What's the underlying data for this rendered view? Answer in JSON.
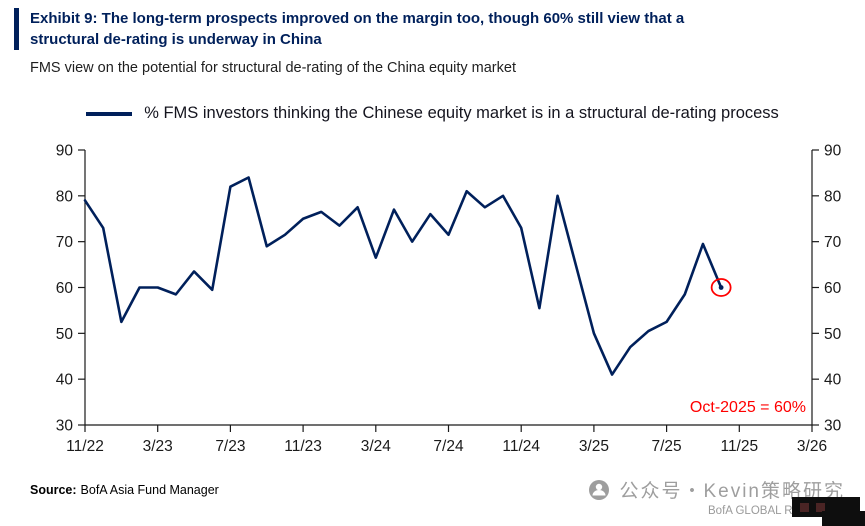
{
  "header": {
    "title_line1": "Exhibit 9: The long-term prospects improved on the margin too, though 60% still view that a",
    "title_line2": "structural de-rating is underway in China",
    "subtitle": "FMS view on the potential for structural de-rating of the China equity market"
  },
  "legend": {
    "label": "% FMS investors thinking the Chinese equity market is in a structural de-rating process"
  },
  "chart_data": {
    "type": "line",
    "title": "FMS view on the potential for structural de-rating of the China equity market",
    "series_name": "% FMS investors thinking the Chinese equity market is in a structural de-rating process",
    "x": [
      "11/22",
      "12/22",
      "1/23",
      "2/23",
      "3/23",
      "4/23",
      "5/23",
      "6/23",
      "7/23",
      "8/23",
      "9/23",
      "10/23",
      "11/23",
      "12/23",
      "1/24",
      "2/24",
      "3/24",
      "4/24",
      "5/24",
      "6/24",
      "7/24",
      "8/24",
      "9/24",
      "10/24",
      "11/24",
      "12/24",
      "1/25",
      "2/25",
      "3/25",
      "4/25",
      "5/25",
      "6/25",
      "7/25",
      "8/25",
      "9/25",
      "10/25"
    ],
    "values": [
      79,
      73,
      52.5,
      60,
      60,
      58.5,
      63.5,
      59.5,
      82,
      84,
      69,
      71.5,
      75,
      76.5,
      73.5,
      77.5,
      66.5,
      77,
      70,
      76,
      71.5,
      81,
      77.5,
      80,
      73,
      55.5,
      80,
      65,
      50,
      41,
      47,
      50.5,
      52.5,
      58.5,
      69.5,
      60
    ],
    "x_tick_labels": [
      "11/22",
      "3/23",
      "7/23",
      "11/23",
      "3/24",
      "7/24",
      "11/24",
      "3/25",
      "7/25",
      "11/25",
      "3/26"
    ],
    "x_axis_months_total": 40,
    "y_ticks": [
      30,
      40,
      50,
      60,
      70,
      80,
      90
    ],
    "ylim": [
      30,
      90
    ],
    "grid": false,
    "legend_position": "top",
    "line_color": "#00205B",
    "axis_color": "#1a1a1a",
    "annotation": {
      "text": "Oct-2025 = 60%",
      "color": "#FF0000",
      "point_index": 35,
      "point_value": 60
    }
  },
  "footer": {
    "source_label": "Source:",
    "source_text": "BofA Asia Fund Manager",
    "watermark_right": "公众号・Kevin策略研究",
    "brand_text": "BofA GLOBAL R"
  }
}
